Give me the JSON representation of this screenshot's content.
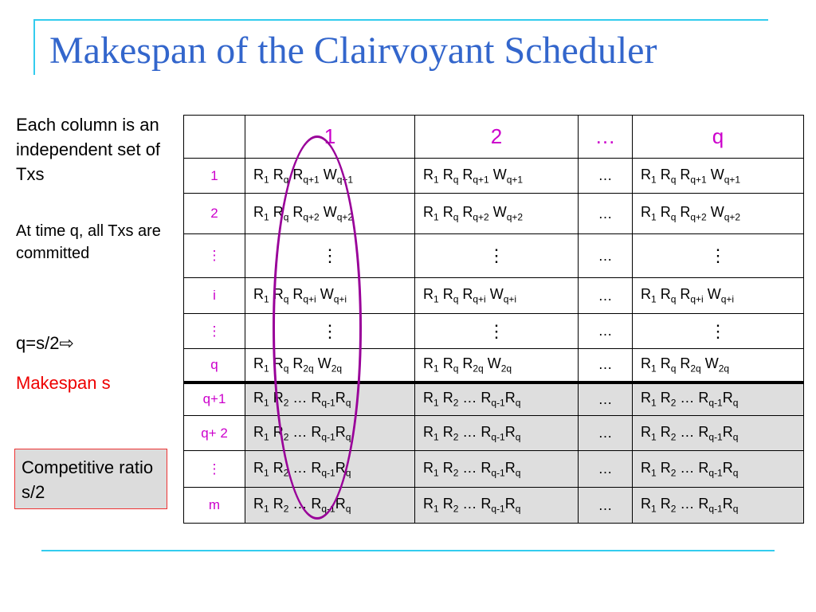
{
  "slide": {
    "title": "Makespan of  the Clairvoyant Scheduler"
  },
  "sidebar": {
    "line1": "Each  column is an independent set of Txs",
    "line2": "At time q, all Txs are committed",
    "line3": "q=s/2⇨",
    "line4": "Makespan s",
    "box": "Competitive ratio s/2"
  },
  "table": {
    "headers": [
      "",
      "1",
      "2",
      "…",
      "q"
    ],
    "row_labels": [
      "1",
      "2",
      "⋮",
      "i",
      "⋮",
      "q",
      "q+1",
      "q+ 2",
      "⋮",
      "m"
    ],
    "ellipsis": "…",
    "vdots": "⋮"
  },
  "colors": {
    "title": "#3366cc",
    "accent_rule": "#33ccee",
    "row_label": "#cc00cc",
    "highlight": "#ee0000",
    "ellipse": "#990099"
  }
}
